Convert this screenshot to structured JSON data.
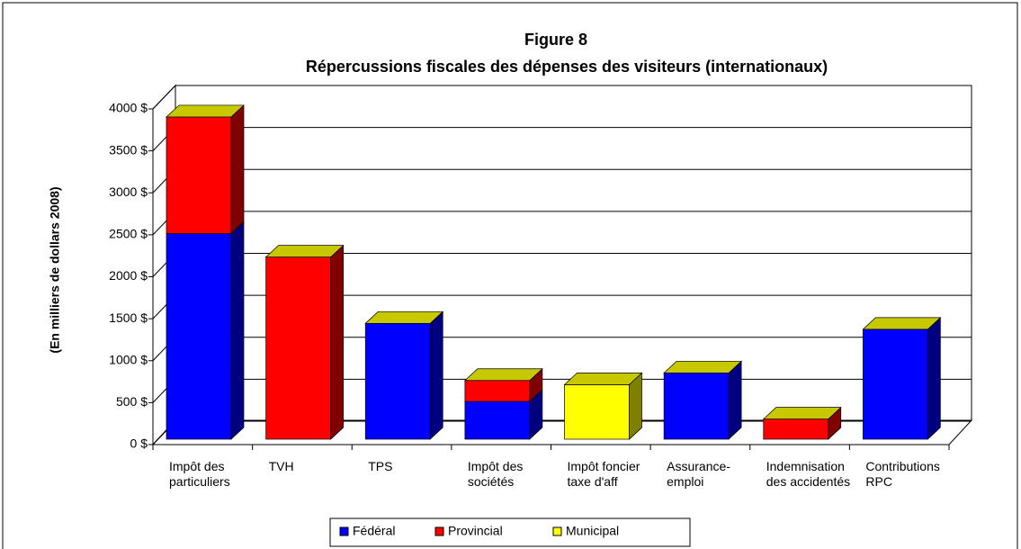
{
  "chart_data": {
    "type": "bar3d_stacked",
    "title": "Figure 8",
    "subtitle": "Répercussions fiscales des dépenses des visiteurs (internationaux)",
    "y_label": "(En milliers de dollars 2008)",
    "categories": [
      "Impôt des particuliers",
      "TVH",
      "TPS",
      "Impôt des sociétés",
      "Impôt foncier taxe d'aff",
      "Assurance-emploi",
      "Indemnisation des accidentés",
      "Contributions RPC"
    ],
    "series": [
      {
        "name": "Fédéral",
        "color": "#0000ff",
        "side_color": "#000080",
        "values": [
          2450,
          0,
          1380,
          450,
          0,
          790,
          0,
          1310
        ]
      },
      {
        "name": "Provincial",
        "color": "#ff0000",
        "side_color": "#800000",
        "values": [
          1390,
          2170,
          0,
          250,
          0,
          0,
          240,
          0
        ]
      },
      {
        "name": "Municipal",
        "color": "#ffff00",
        "side_color": "#808000",
        "values": [
          0,
          0,
          0,
          0,
          650,
          0,
          0,
          0
        ]
      }
    ],
    "ylim": [
      0,
      4000
    ],
    "yticks": [
      {
        "value": 0,
        "label": "0 $"
      },
      {
        "value": 500,
        "label": "500 $"
      },
      {
        "value": 1000,
        "label": "1000 $"
      },
      {
        "value": 1500,
        "label": "1500 $"
      },
      {
        "value": 2000,
        "label": "2000 $"
      },
      {
        "value": 2500,
        "label": "2500 $"
      },
      {
        "value": 3000,
        "label": "3000 $"
      },
      {
        "value": 3500,
        "label": "3500 $"
      },
      {
        "value": 4000,
        "label": "4000 $"
      }
    ],
    "grid": true,
    "legend": "bottom"
  }
}
